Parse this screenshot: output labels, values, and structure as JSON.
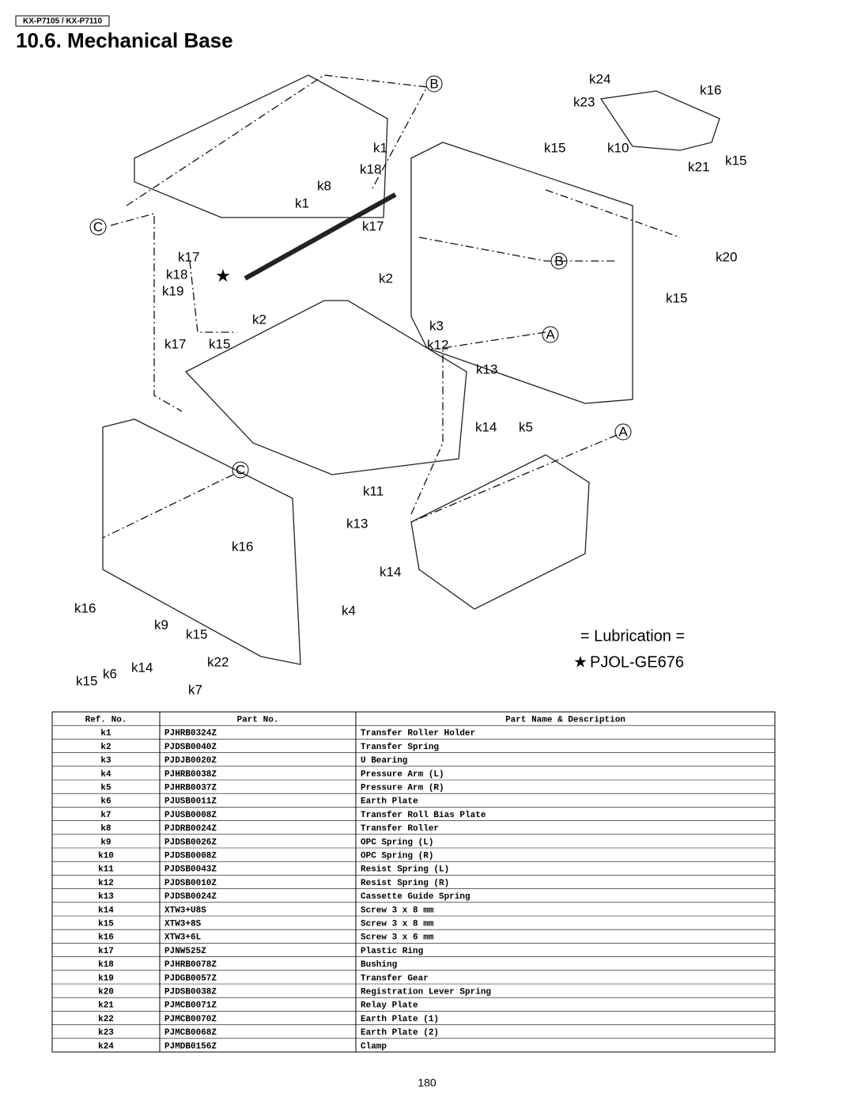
{
  "header": {
    "model": "KX-P7105 / KX-P7110",
    "title": "10.6. Mechanical Base"
  },
  "diagram": {
    "callouts": [
      "B",
      "k24",
      "k16",
      "k23",
      "k1",
      "k15",
      "k10",
      "k21",
      "k15",
      "k18",
      "k8",
      "k1",
      "C",
      "k17",
      "B",
      "k20",
      "k17",
      "k18",
      "k2",
      "k19",
      "k15",
      "k2",
      "k3",
      "A",
      "k17",
      "k15",
      "k12",
      "k13",
      "k14",
      "k5",
      "A",
      "C",
      "k11",
      "k13",
      "k16",
      "k14",
      "k4",
      "k16",
      "k9",
      "k15",
      "k14",
      "k22",
      "k6",
      "k15",
      "k7"
    ],
    "legend_title": "= Lubrication =",
    "legend_item": "PJOL-GE676"
  },
  "table": {
    "columns": [
      "Ref. No.",
      "Part No.",
      "Part Name & Description"
    ],
    "rows": [
      [
        "k1",
        "PJHRB0324Z",
        "Transfer Roller Holder"
      ],
      [
        "k2",
        "PJDSB0040Z",
        "Transfer Spring"
      ],
      [
        "k3",
        "PJDJB0020Z",
        "U Bearing"
      ],
      [
        "k4",
        "PJHRB0038Z",
        "Pressure Arm (L)"
      ],
      [
        "k5",
        "PJHRB0037Z",
        "Pressure Arm (R)"
      ],
      [
        "k6",
        "PJUSB0011Z",
        "Earth Plate"
      ],
      [
        "k7",
        "PJUSB0008Z",
        "Transfer Roll Bias Plate"
      ],
      [
        "k8",
        "PJDRB0024Z",
        "Transfer Roller"
      ],
      [
        "k9",
        "PJDSB0026Z",
        "OPC Spring (L)"
      ],
      [
        "k10",
        "PJDSB0008Z",
        "OPC Spring (R)"
      ],
      [
        "k11",
        "PJDSB0043Z",
        "Resist Spring (L)"
      ],
      [
        "k12",
        "PJDSB0010Z",
        "Resist Spring (R)"
      ],
      [
        "k13",
        "PJDSB0024Z",
        "Cassette Guide Spring"
      ],
      [
        "k14",
        "XTW3+U8S",
        "Screw 3 x 8 mm"
      ],
      [
        "k15",
        "XTW3+8S",
        "Screw 3 x 8 mm"
      ],
      [
        "k16",
        "XTW3+6L",
        "Screw 3 x 6 mm"
      ],
      [
        "k17",
        "PJNW525Z",
        "Plastic Ring"
      ],
      [
        "k18",
        "PJHRB0078Z",
        "Bushing"
      ],
      [
        "k19",
        "PJDGB0057Z",
        "Transfer Gear"
      ],
      [
        "k20",
        "PJDSB0038Z",
        "Registration Lever Spring"
      ],
      [
        "k21",
        "PJMCB0071Z",
        "Relay Plate"
      ],
      [
        "k22",
        "PJMCB0070Z",
        "Earth Plate (1)"
      ],
      [
        "k23",
        "PJMCB0068Z",
        "Earth Plate (2)"
      ],
      [
        "k24",
        "PJMDB0156Z",
        "Clamp"
      ]
    ]
  },
  "footer": {
    "page": "180"
  }
}
